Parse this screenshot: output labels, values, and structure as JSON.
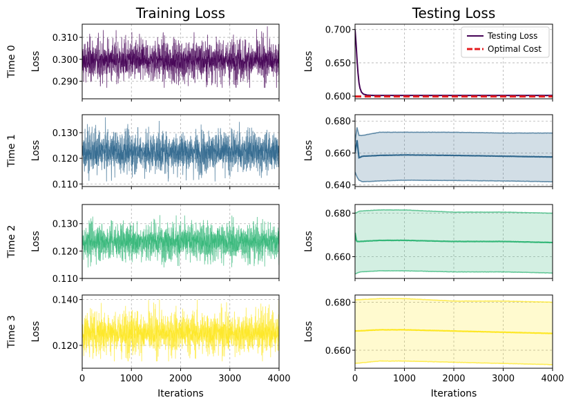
{
  "figure": {
    "col_titles": [
      "Training Loss",
      "Testing Loss"
    ],
    "row_labels": [
      "Time 0",
      "Time 1",
      "Time 2",
      "Time 3"
    ],
    "y_axis_label": "Loss",
    "x_axis_label": "Iterations",
    "x_ticks": [
      "0",
      "1000",
      "2000",
      "3000",
      "4000"
    ]
  },
  "chart_data": [
    {
      "id": "train-0",
      "type": "line",
      "panel": "Training Loss / Time 0",
      "color": "#440154",
      "xlim": [
        0,
        4000
      ],
      "ylim": [
        0.282,
        0.316
      ],
      "grid": true,
      "yticks": [
        0.29,
        0.3,
        0.31
      ],
      "ytick_labels": [
        "0.290",
        "0.300",
        "0.310"
      ],
      "series": [
        {
          "mean": 0.2995,
          "band_low": 0.29,
          "band_high": 0.31,
          "extreme_low": 0.287,
          "extreme_high": 0.315
        }
      ]
    },
    {
      "id": "train-1",
      "type": "line",
      "panel": "Training Loss / Time 1",
      "color": "#31688e",
      "xlim": [
        0,
        4000
      ],
      "ylim": [
        0.109,
        0.137
      ],
      "grid": true,
      "yticks": [
        0.11,
        0.12,
        0.13
      ],
      "ytick_labels": [
        "0.110",
        "0.120",
        "0.130"
      ],
      "series": [
        {
          "mean": 0.1225,
          "band_low": 0.114,
          "band_high": 0.131,
          "extreme_low": 0.111,
          "extreme_high": 0.136
        }
      ]
    },
    {
      "id": "train-2",
      "type": "line",
      "panel": "Training Loss / Time 2",
      "color": "#35b779",
      "xlim": [
        0,
        4000
      ],
      "ylim": [
        0.11,
        0.137
      ],
      "grid": true,
      "yticks": [
        0.11,
        0.12,
        0.13
      ],
      "ytick_labels": [
        "0.110",
        "0.120",
        "0.130"
      ],
      "series": [
        {
          "mean": 0.1235,
          "band_low": 0.116,
          "band_high": 0.131,
          "extreme_low": 0.114,
          "extreme_high": 0.135
        }
      ]
    },
    {
      "id": "train-3",
      "type": "line",
      "panel": "Training Loss / Time 3",
      "color": "#fde725",
      "xlim": [
        0,
        4000
      ],
      "ylim": [
        0.11,
        0.142
      ],
      "grid": true,
      "yticks": [
        0.12,
        0.14
      ],
      "ytick_labels": [
        "0.120",
        "0.140"
      ],
      "series": [
        {
          "mean": 0.1255,
          "band_low": 0.116,
          "band_high": 0.136,
          "extreme_low": 0.113,
          "extreme_high": 0.14
        }
      ]
    },
    {
      "id": "test-0",
      "type": "line",
      "panel": "Testing Loss / Time 0",
      "xlim": [
        0,
        4000
      ],
      "ylim": [
        0.596,
        0.708
      ],
      "grid": true,
      "yticks": [
        0.6,
        0.65,
        0.7
      ],
      "ytick_labels": [
        "0.600",
        "0.650",
        "0.700"
      ],
      "legend": "top-right",
      "series": [
        {
          "name": "Testing Loss",
          "color": "#440154",
          "style": "solid",
          "points": [
            [
              0,
              0.7
            ],
            [
              20,
              0.68
            ],
            [
              40,
              0.655
            ],
            [
              60,
              0.635
            ],
            [
              80,
              0.62
            ],
            [
              100,
              0.612
            ],
            [
              130,
              0.606
            ],
            [
              170,
              0.603
            ],
            [
              250,
              0.6015
            ],
            [
              400,
              0.601
            ],
            [
              4000,
              0.601
            ]
          ]
        },
        {
          "name": "Optimal Cost",
          "color": "#e41a1c",
          "style": "dashed",
          "points": [
            [
              0,
              0.5995
            ],
            [
              4000,
              0.5995
            ]
          ]
        }
      ]
    },
    {
      "id": "test-1",
      "type": "area",
      "panel": "Testing Loss / Time 1",
      "color": "#31688e",
      "xlim": [
        0,
        4000
      ],
      "ylim": [
        0.639,
        0.684
      ],
      "grid": true,
      "yticks": [
        0.64,
        0.66,
        0.68
      ],
      "ytick_labels": [
        "0.640",
        "0.660",
        "0.680"
      ],
      "series": [
        {
          "role": "mean",
          "points": [
            [
              0,
              0.66
            ],
            [
              40,
              0.668
            ],
            [
              80,
              0.657
            ],
            [
              150,
              0.658
            ],
            [
              500,
              0.6585
            ],
            [
              1000,
              0.6588
            ],
            [
              2000,
              0.6585
            ],
            [
              3000,
              0.658
            ],
            [
              4000,
              0.6575
            ]
          ]
        },
        {
          "role": "upper",
          "points": [
            [
              0,
              0.667
            ],
            [
              40,
              0.676
            ],
            [
              80,
              0.671
            ],
            [
              150,
              0.671
            ],
            [
              500,
              0.673
            ],
            [
              1000,
              0.673
            ],
            [
              2000,
              0.673
            ],
            [
              3000,
              0.6725
            ],
            [
              4000,
              0.6725
            ]
          ]
        },
        {
          "role": "lower",
          "points": [
            [
              0,
              0.648
            ],
            [
              40,
              0.645
            ],
            [
              80,
              0.643
            ],
            [
              150,
              0.642
            ],
            [
              500,
              0.6425
            ],
            [
              1000,
              0.643
            ],
            [
              2000,
              0.6428
            ],
            [
              3000,
              0.6425
            ],
            [
              4000,
              0.642
            ]
          ]
        }
      ]
    },
    {
      "id": "test-2",
      "type": "area",
      "panel": "Testing Loss / Time 2",
      "color": "#35b779",
      "xlim": [
        0,
        4000
      ],
      "ylim": [
        0.65,
        0.684
      ],
      "grid": true,
      "yticks": [
        0.66,
        0.68
      ],
      "ytick_labels": [
        "0.660",
        "0.680"
      ],
      "series": [
        {
          "role": "mean",
          "points": [
            [
              0,
              0.671
            ],
            [
              30,
              0.667
            ],
            [
              100,
              0.667
            ],
            [
              500,
              0.6675
            ],
            [
              1000,
              0.6675
            ],
            [
              2000,
              0.667
            ],
            [
              3000,
              0.667
            ],
            [
              4000,
              0.6665
            ]
          ]
        },
        {
          "role": "upper",
          "points": [
            [
              0,
              0.68
            ],
            [
              100,
              0.681
            ],
            [
              500,
              0.6815
            ],
            [
              1000,
              0.6815
            ],
            [
              1500,
              0.681
            ],
            [
              2000,
              0.6805
            ],
            [
              3000,
              0.6805
            ],
            [
              4000,
              0.68
            ]
          ]
        },
        {
          "role": "lower",
          "points": [
            [
              0,
              0.652
            ],
            [
              100,
              0.653
            ],
            [
              500,
              0.6535
            ],
            [
              1000,
              0.6535
            ],
            [
              2000,
              0.653
            ],
            [
              3000,
              0.653
            ],
            [
              4000,
              0.6525
            ]
          ]
        }
      ]
    },
    {
      "id": "test-3",
      "type": "area",
      "panel": "Testing Loss / Time 3",
      "color": "#fde725",
      "xlim": [
        0,
        4000
      ],
      "ylim": [
        0.6525,
        0.683
      ],
      "grid": true,
      "yticks": [
        0.66,
        0.68
      ],
      "ytick_labels": [
        "0.660",
        "0.680"
      ],
      "series": [
        {
          "role": "mean",
          "points": [
            [
              0,
              0.668
            ],
            [
              500,
              0.6685
            ],
            [
              1000,
              0.6685
            ],
            [
              2000,
              0.668
            ],
            [
              3000,
              0.6675
            ],
            [
              4000,
              0.667
            ]
          ]
        },
        {
          "role": "upper",
          "points": [
            [
              0,
              0.681
            ],
            [
              500,
              0.6815
            ],
            [
              1000,
              0.6815
            ],
            [
              1500,
              0.681
            ],
            [
              2000,
              0.6805
            ],
            [
              3000,
              0.6805
            ],
            [
              4000,
              0.68
            ]
          ]
        },
        {
          "role": "lower",
          "points": [
            [
              0,
              0.6545
            ],
            [
              500,
              0.6555
            ],
            [
              1000,
              0.6555
            ],
            [
              2000,
              0.655
            ],
            [
              3000,
              0.6545
            ],
            [
              4000,
              0.654
            ]
          ]
        }
      ]
    }
  ]
}
